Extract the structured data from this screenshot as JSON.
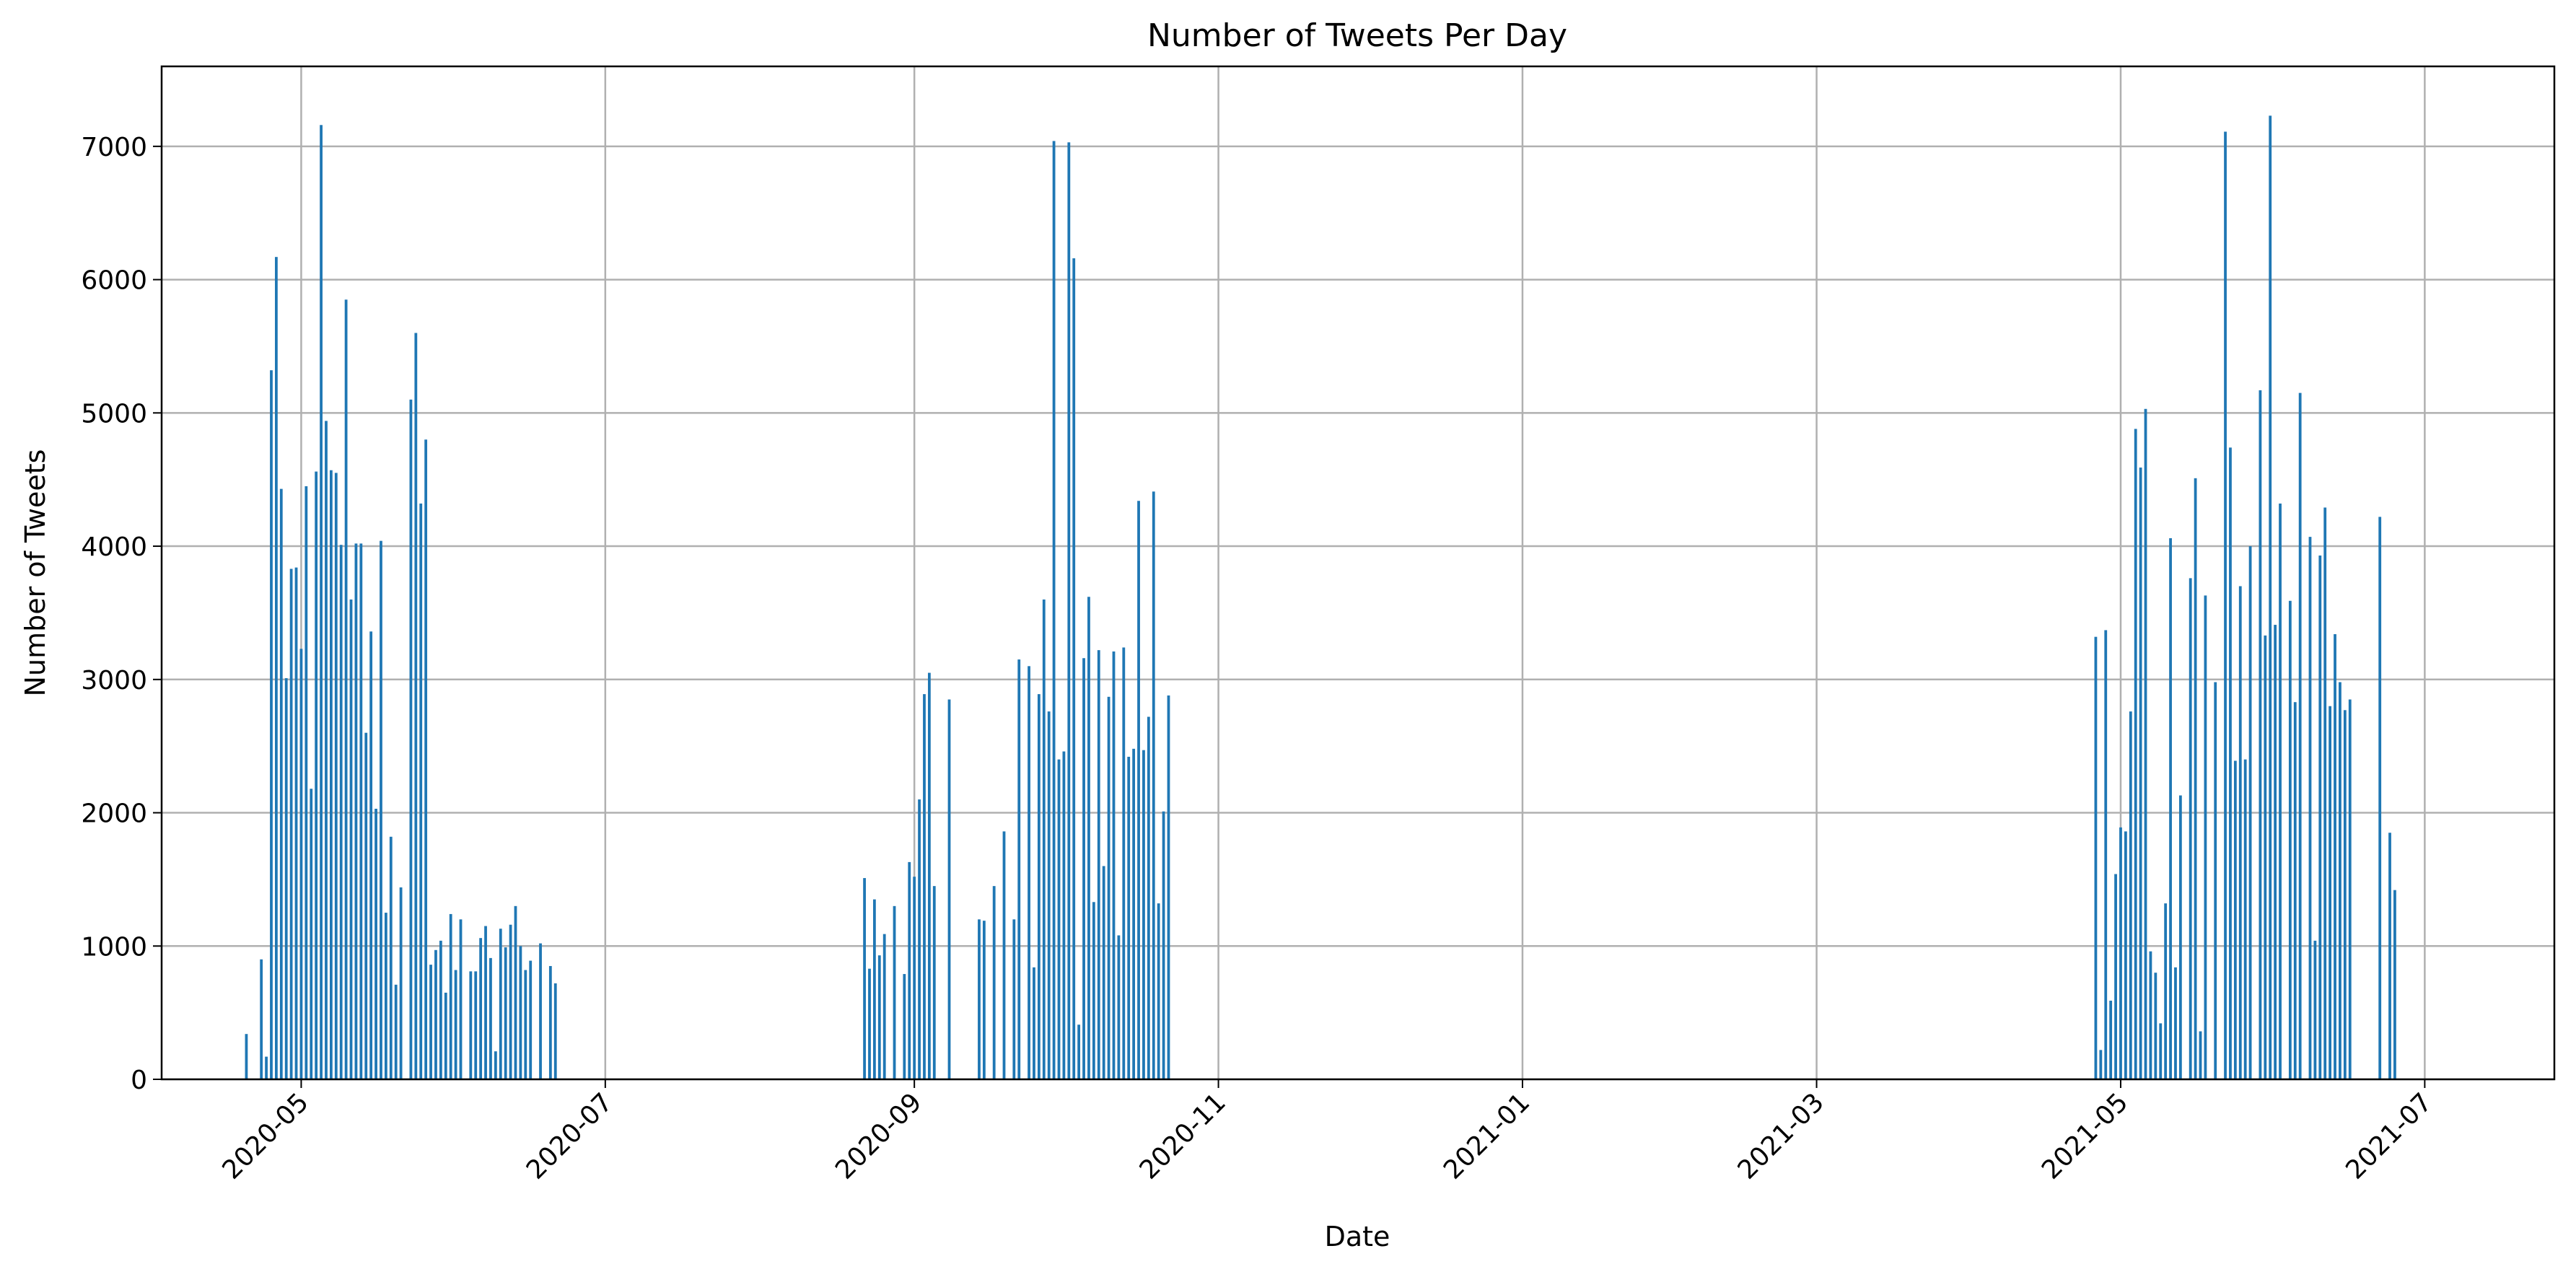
{
  "chart_data": {
    "type": "bar",
    "title": "Number of Tweets Per Day",
    "xlabel": "Date",
    "ylabel": "Number of Tweets",
    "x_axis": {
      "scale": "date",
      "range": [
        "2020-04-03",
        "2021-07-27"
      ],
      "ticks": [
        "2020-05-01",
        "2020-07-01",
        "2020-09-01",
        "2020-11-01",
        "2021-01-01",
        "2021-03-01",
        "2021-05-01",
        "2021-07-01"
      ],
      "tick_labels": [
        "2020-05",
        "2020-07",
        "2020-09",
        "2020-11",
        "2021-01",
        "2021-03",
        "2021-05",
        "2021-07"
      ]
    },
    "y_axis": {
      "range": [
        0,
        7600
      ],
      "ticks": [
        0,
        1000,
        2000,
        3000,
        4000,
        5000,
        6000,
        7000
      ],
      "tick_labels": [
        "0",
        "1000",
        "2000",
        "3000",
        "4000",
        "5000",
        "6000",
        "7000"
      ]
    },
    "grid": true,
    "bar_color": "#1f77b4",
    "series": [
      {
        "values": [
          [
            "2020-04-20",
            340
          ],
          [
            "2020-04-23",
            900
          ],
          [
            "2020-04-24",
            170
          ],
          [
            "2020-04-25",
            5320
          ],
          [
            "2020-04-26",
            6170
          ],
          [
            "2020-04-27",
            4430
          ],
          [
            "2020-04-28",
            3010
          ],
          [
            "2020-04-29",
            3830
          ],
          [
            "2020-04-30",
            3840
          ],
          [
            "2020-05-01",
            3230
          ],
          [
            "2020-05-02",
            4450
          ],
          [
            "2020-05-03",
            2180
          ],
          [
            "2020-05-04",
            4560
          ],
          [
            "2020-05-05",
            7160
          ],
          [
            "2020-05-06",
            4940
          ],
          [
            "2020-05-07",
            4570
          ],
          [
            "2020-05-08",
            4550
          ],
          [
            "2020-05-09",
            4010
          ],
          [
            "2020-05-10",
            5850
          ],
          [
            "2020-05-11",
            3600
          ],
          [
            "2020-05-12",
            4020
          ],
          [
            "2020-05-13",
            4020
          ],
          [
            "2020-05-14",
            2600
          ],
          [
            "2020-05-15",
            3360
          ],
          [
            "2020-05-16",
            2030
          ],
          [
            "2020-05-17",
            4040
          ],
          [
            "2020-05-18",
            1250
          ],
          [
            "2020-05-19",
            1820
          ],
          [
            "2020-05-20",
            710
          ],
          [
            "2020-05-21",
            1440
          ],
          [
            "2020-05-23",
            5100
          ],
          [
            "2020-05-24",
            5600
          ],
          [
            "2020-05-25",
            4320
          ],
          [
            "2020-05-26",
            4800
          ],
          [
            "2020-05-27",
            860
          ],
          [
            "2020-05-28",
            970
          ],
          [
            "2020-05-29",
            1040
          ],
          [
            "2020-05-30",
            650
          ],
          [
            "2020-05-31",
            1240
          ],
          [
            "2020-06-01",
            820
          ],
          [
            "2020-06-02",
            1200
          ],
          [
            "2020-06-04",
            810
          ],
          [
            "2020-06-05",
            810
          ],
          [
            "2020-06-06",
            1060
          ],
          [
            "2020-06-07",
            1150
          ],
          [
            "2020-06-08",
            910
          ],
          [
            "2020-06-09",
            210
          ],
          [
            "2020-06-10",
            1130
          ],
          [
            "2020-06-11",
            990
          ],
          [
            "2020-06-12",
            1160
          ],
          [
            "2020-06-13",
            1300
          ],
          [
            "2020-06-14",
            1000
          ],
          [
            "2020-06-15",
            820
          ],
          [
            "2020-06-16",
            890
          ],
          [
            "2020-06-18",
            1020
          ],
          [
            "2020-06-20",
            850
          ],
          [
            "2020-06-21",
            720
          ],
          [
            "2020-08-22",
            1510
          ],
          [
            "2020-08-23",
            830
          ],
          [
            "2020-08-24",
            1350
          ],
          [
            "2020-08-25",
            930
          ],
          [
            "2020-08-26",
            1090
          ],
          [
            "2020-08-28",
            1300
          ],
          [
            "2020-08-30",
            790
          ],
          [
            "2020-08-31",
            1630
          ],
          [
            "2020-09-01",
            1520
          ],
          [
            "2020-09-02",
            2100
          ],
          [
            "2020-09-03",
            2890
          ],
          [
            "2020-09-04",
            3050
          ],
          [
            "2020-09-05",
            1450
          ],
          [
            "2020-09-08",
            2850
          ],
          [
            "2020-09-14",
            1200
          ],
          [
            "2020-09-15",
            1190
          ],
          [
            "2020-09-17",
            1450
          ],
          [
            "2020-09-19",
            1860
          ],
          [
            "2020-09-21",
            1200
          ],
          [
            "2020-09-22",
            3150
          ],
          [
            "2020-09-24",
            3100
          ],
          [
            "2020-09-25",
            840
          ],
          [
            "2020-09-26",
            2890
          ],
          [
            "2020-09-27",
            3600
          ],
          [
            "2020-09-28",
            2760
          ],
          [
            "2020-09-29",
            7040
          ],
          [
            "2020-09-30",
            2400
          ],
          [
            "2020-10-01",
            2460
          ],
          [
            "2020-10-02",
            7030
          ],
          [
            "2020-10-03",
            6160
          ],
          [
            "2020-10-04",
            410
          ],
          [
            "2020-10-05",
            3160
          ],
          [
            "2020-10-06",
            3620
          ],
          [
            "2020-10-07",
            1330
          ],
          [
            "2020-10-08",
            3220
          ],
          [
            "2020-10-09",
            1600
          ],
          [
            "2020-10-10",
            2870
          ],
          [
            "2020-10-11",
            3210
          ],
          [
            "2020-10-12",
            1080
          ],
          [
            "2020-10-13",
            3240
          ],
          [
            "2020-10-14",
            2420
          ],
          [
            "2020-10-15",
            2480
          ],
          [
            "2020-10-16",
            4340
          ],
          [
            "2020-10-17",
            2470
          ],
          [
            "2020-10-18",
            2720
          ],
          [
            "2020-10-19",
            4410
          ],
          [
            "2020-10-20",
            1320
          ],
          [
            "2020-10-21",
            2010
          ],
          [
            "2020-10-22",
            2880
          ],
          [
            "2021-04-26",
            3320
          ],
          [
            "2021-04-27",
            220
          ],
          [
            "2021-04-28",
            3370
          ],
          [
            "2021-04-29",
            590
          ],
          [
            "2021-04-30",
            1540
          ],
          [
            "2021-05-01",
            1890
          ],
          [
            "2021-05-02",
            1860
          ],
          [
            "2021-05-03",
            2760
          ],
          [
            "2021-05-04",
            4880
          ],
          [
            "2021-05-05",
            4590
          ],
          [
            "2021-05-06",
            5030
          ],
          [
            "2021-05-07",
            960
          ],
          [
            "2021-05-08",
            800
          ],
          [
            "2021-05-09",
            420
          ],
          [
            "2021-05-10",
            1320
          ],
          [
            "2021-05-11",
            4060
          ],
          [
            "2021-05-12",
            840
          ],
          [
            "2021-05-13",
            2130
          ],
          [
            "2021-05-15",
            3760
          ],
          [
            "2021-05-16",
            4510
          ],
          [
            "2021-05-17",
            360
          ],
          [
            "2021-05-18",
            3630
          ],
          [
            "2021-05-20",
            2980
          ],
          [
            "2021-05-22",
            7110
          ],
          [
            "2021-05-23",
            4740
          ],
          [
            "2021-05-24",
            2390
          ],
          [
            "2021-05-25",
            3700
          ],
          [
            "2021-05-26",
            2400
          ],
          [
            "2021-05-27",
            4000
          ],
          [
            "2021-05-29",
            5170
          ],
          [
            "2021-05-30",
            3330
          ],
          [
            "2021-05-31",
            7230
          ],
          [
            "2021-06-01",
            3410
          ],
          [
            "2021-06-02",
            4320
          ],
          [
            "2021-06-04",
            3590
          ],
          [
            "2021-06-05",
            2830
          ],
          [
            "2021-06-06",
            5150
          ],
          [
            "2021-06-08",
            4070
          ],
          [
            "2021-06-09",
            1040
          ],
          [
            "2021-06-10",
            3930
          ],
          [
            "2021-06-11",
            4290
          ],
          [
            "2021-06-12",
            2800
          ],
          [
            "2021-06-13",
            3340
          ],
          [
            "2021-06-14",
            2980
          ],
          [
            "2021-06-15",
            2770
          ],
          [
            "2021-06-16",
            2850
          ],
          [
            "2021-06-22",
            4220
          ],
          [
            "2021-06-24",
            1850
          ],
          [
            "2021-06-25",
            1420
          ]
        ]
      }
    ]
  }
}
